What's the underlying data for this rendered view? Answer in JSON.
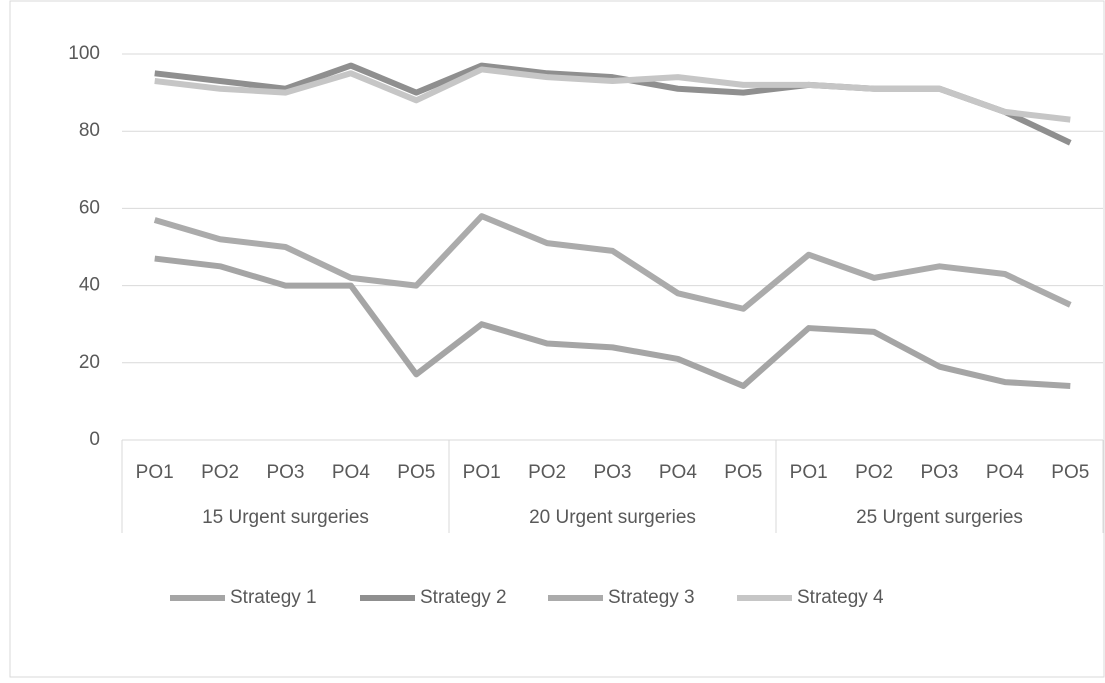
{
  "chart_data": {
    "type": "line",
    "categories": [
      "PO1",
      "PO2",
      "PO3",
      "PO4",
      "PO5",
      "PO1",
      "PO2",
      "PO3",
      "PO4",
      "PO5",
      "PO1",
      "PO2",
      "PO3",
      "PO4",
      "PO5"
    ],
    "category_groups": [
      "15 Urgent surgeries",
      "20 Urgent surgeries",
      "25 Urgent surgeries"
    ],
    "series": [
      {
        "name": "Strategy 1",
        "color": "#a5a5a5",
        "values": [
          47,
          45,
          40,
          40,
          17,
          30,
          25,
          24,
          21,
          14,
          29,
          28,
          19,
          15,
          14
        ]
      },
      {
        "name": "Strategy 2",
        "color": "#8f8f8f",
        "values": [
          95,
          93,
          91,
          97,
          90,
          97,
          95,
          94,
          91,
          90,
          92,
          91,
          91,
          85,
          77
        ]
      },
      {
        "name": "Strategy 3",
        "color": "#ababab",
        "values": [
          57,
          52,
          50,
          42,
          40,
          58,
          51,
          49,
          38,
          34,
          48,
          42,
          45,
          43,
          35
        ]
      },
      {
        "name": "Strategy 4",
        "color": "#c6c6c6",
        "values": [
          93,
          91,
          90,
          95,
          88,
          96,
          94,
          93,
          94,
          92,
          92,
          91,
          91,
          85,
          83
        ]
      }
    ],
    "ylim": [
      0,
      100
    ],
    "yticks": [
      0,
      20,
      40,
      60,
      80,
      100
    ],
    "grid": true,
    "legend": "bottom"
  }
}
